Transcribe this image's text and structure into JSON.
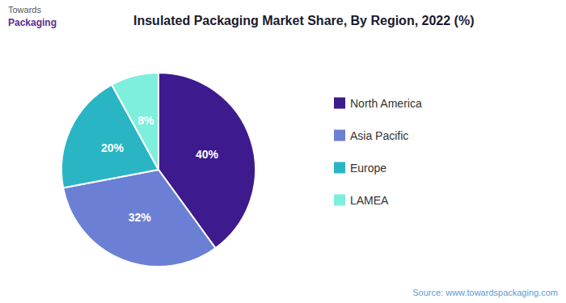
{
  "chart_data": {
    "type": "pie",
    "title": "Insulated Packaging Market Share, By Region, 2022 (%)",
    "categories": [
      "North America",
      "Asia Pacific",
      "Europe",
      "LAMEA"
    ],
    "values": [
      40,
      32,
      20,
      8
    ],
    "value_labels": [
      "40%",
      "32%",
      "20%",
      "8%"
    ],
    "colors": [
      "#3d1a8e",
      "#6b7fd4",
      "#2ab5c5",
      "#7eeedd"
    ],
    "data_labels": true,
    "legend": "right",
    "annotations": [
      "Source: www.towardspackaging.com",
      "Towards",
      "Packaging"
    ]
  }
}
